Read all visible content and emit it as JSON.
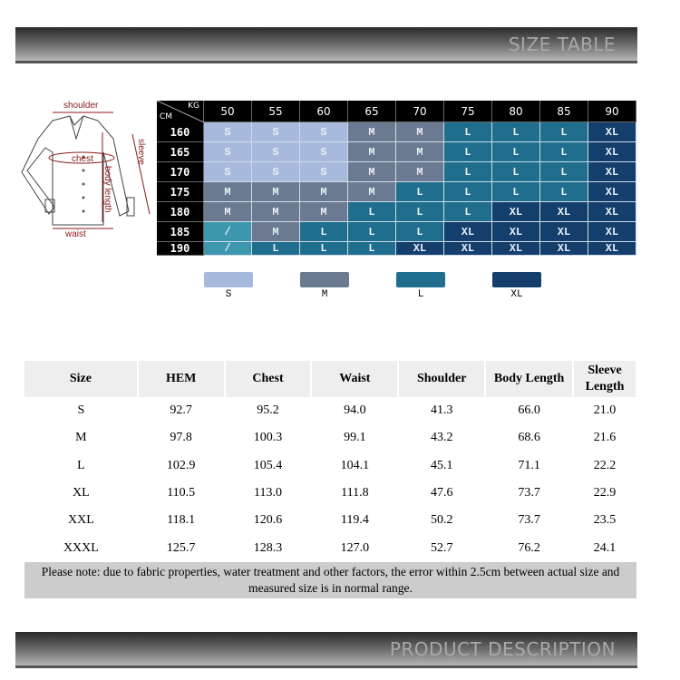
{
  "banner_top": "SIZE TABLE",
  "banner_bottom": "PRODUCT DESCRIPTION",
  "diagram_labels": {
    "shoulder": "shoulder",
    "chest": "chest",
    "sleeve": "sleeve",
    "body_length": "body length",
    "waist": "waist"
  },
  "size_chart": {
    "corner_kg": "KG",
    "corner_cm": "CM",
    "weights_kg": [
      "50",
      "55",
      "60",
      "65",
      "70",
      "75",
      "80",
      "85",
      "90"
    ],
    "heights_cm": [
      "160",
      "165",
      "170",
      "175",
      "180",
      "185",
      "190"
    ],
    "sizes": [
      [
        "S",
        "S",
        "S",
        "M",
        "M",
        "L",
        "L",
        "L",
        "XL"
      ],
      [
        "S",
        "S",
        "S",
        "M",
        "M",
        "L",
        "L",
        "L",
        "XL"
      ],
      [
        "S",
        "S",
        "S",
        "M",
        "M",
        "L",
        "L",
        "L",
        "XL"
      ],
      [
        "M",
        "M",
        "M",
        "M",
        "L",
        "L",
        "L",
        "L",
        "XL"
      ],
      [
        "M",
        "M",
        "M",
        "L",
        "L",
        "L",
        "XL",
        "XL",
        "XL"
      ],
      [
        "/",
        "M",
        "L",
        "L",
        "L",
        "XL",
        "XL",
        "XL",
        "XL"
      ],
      [
        "/",
        "L",
        "L",
        "L",
        "XL",
        "XL",
        "XL",
        "XL",
        "XL"
      ]
    ],
    "colors": {
      "S": "#a8b9de",
      "M": "#6b7991",
      "L": "#1f6e8e",
      "XL": "#143f6d",
      "/": "#3c96ae"
    },
    "legend": [
      "S",
      "M",
      "L",
      "XL"
    ]
  },
  "measure_table": {
    "headers": [
      "Size",
      "HEM",
      "Chest",
      "Waist",
      "Shoulder",
      "Body Length",
      "Sleeve Length"
    ],
    "rows": [
      [
        "S",
        "92.7",
        "95.2",
        "94.0",
        "41.3",
        "66.0",
        "21.0"
      ],
      [
        "M",
        "97.8",
        "100.3",
        "99.1",
        "43.2",
        "68.6",
        "21.6"
      ],
      [
        "L",
        "102.9",
        "105.4",
        "104.1",
        "45.1",
        "71.1",
        "22.2"
      ],
      [
        "XL",
        "110.5",
        "113.0",
        "111.8",
        "47.6",
        "73.7",
        "22.9"
      ],
      [
        "XXL",
        "118.1",
        "120.6",
        "119.4",
        "50.2",
        "73.7",
        "23.5"
      ],
      [
        "XXXL",
        "125.7",
        "128.3",
        "127.0",
        "52.7",
        "76.2",
        "24.1"
      ]
    ],
    "note": "Please note: due to fabric properties, water treatment and other factors, the error within 2.5cm between actual size and measured size is in normal range."
  }
}
